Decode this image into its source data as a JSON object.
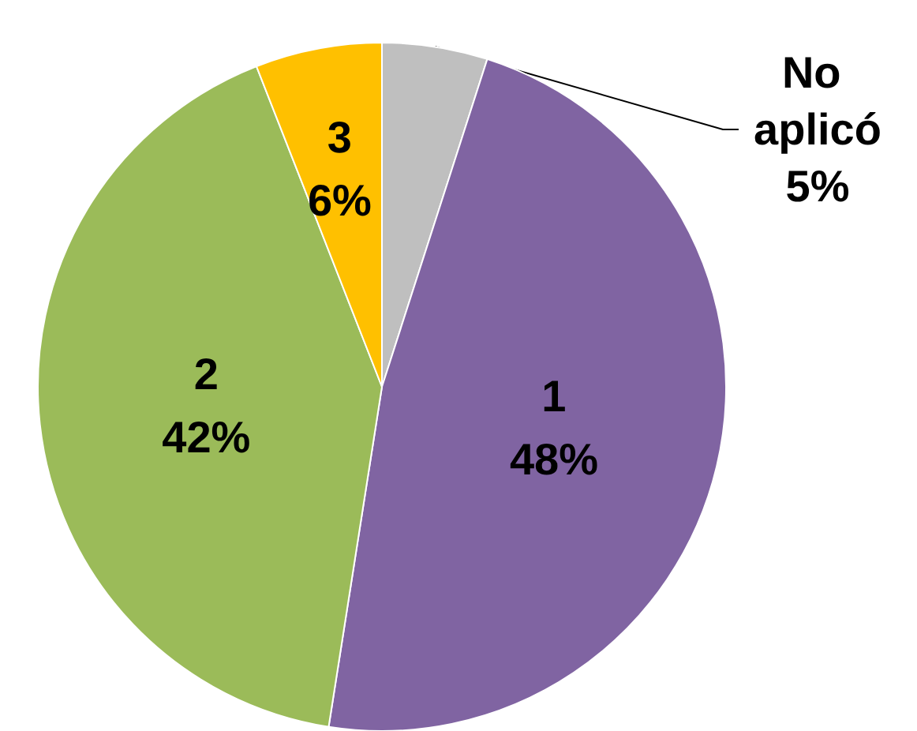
{
  "chart_data": {
    "type": "pie",
    "categories": [
      "No aplicó",
      "1",
      "2",
      "3"
    ],
    "values": [
      5,
      48,
      42,
      6
    ],
    "colors": [
      "#bfbfbf",
      "#8064a2",
      "#9bbb59",
      "#ffc000"
    ],
    "value_labels": [
      "5%",
      "48%",
      "42%",
      "6%"
    ],
    "legend": false
  }
}
